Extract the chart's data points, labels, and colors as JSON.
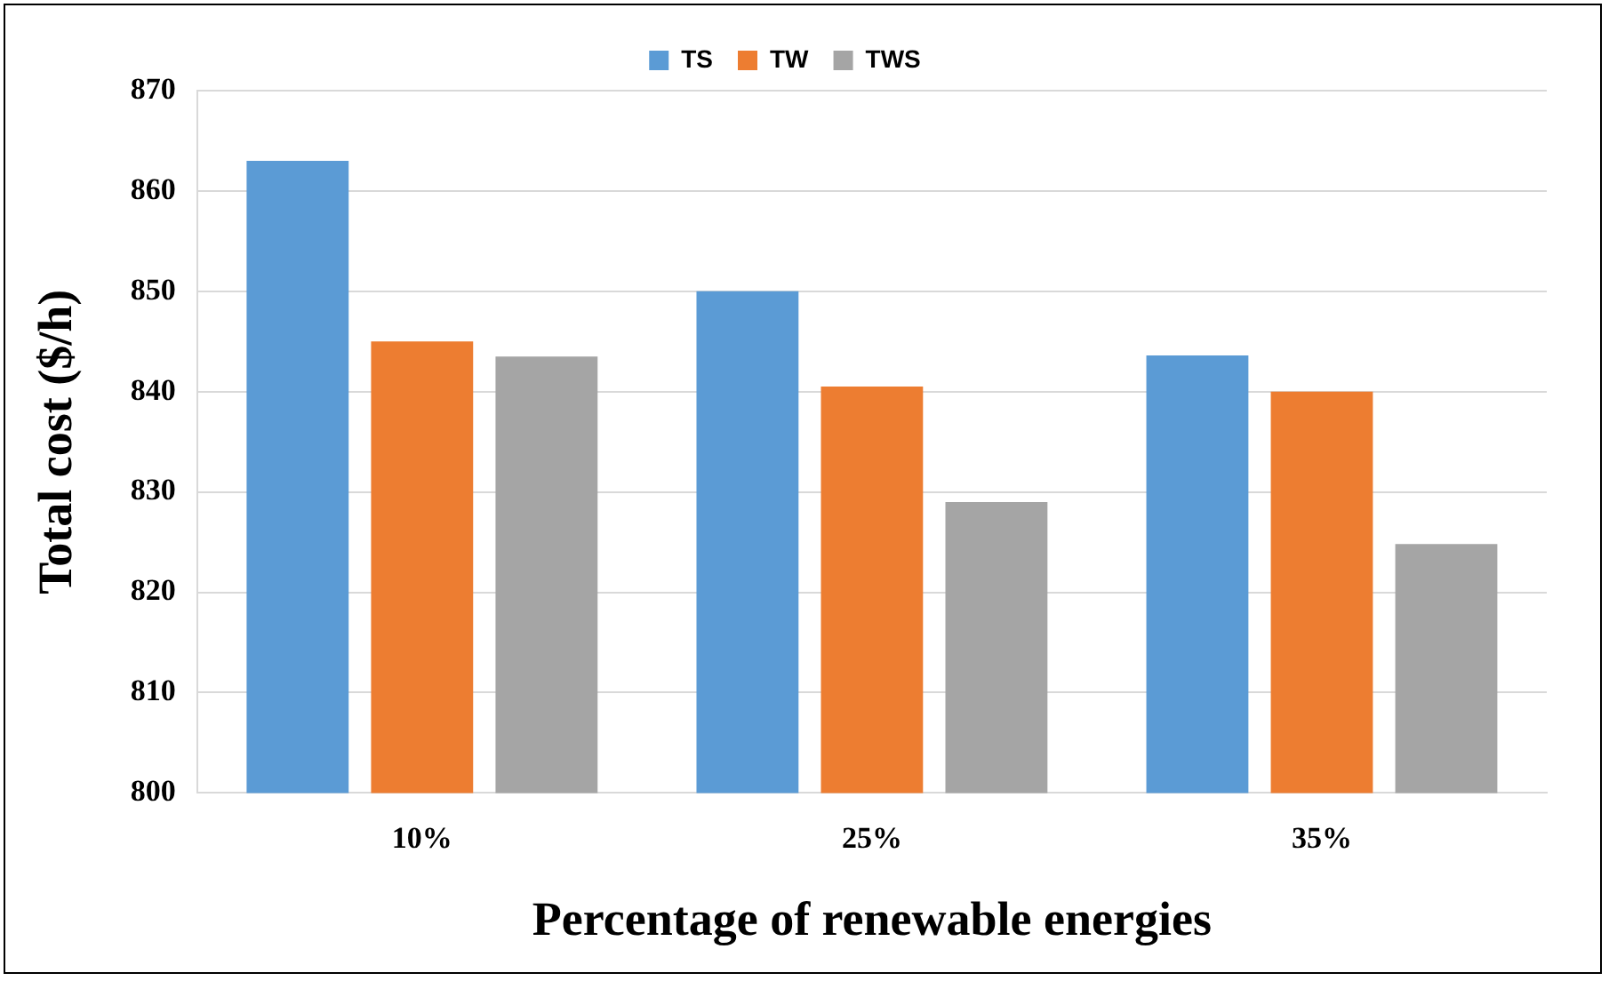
{
  "chart_data": {
    "type": "bar",
    "xlabel": "Percentage of renewable energies",
    "ylabel": "Total cost ($/h)",
    "categories": [
      "10%",
      "25%",
      "35%"
    ],
    "series": [
      {
        "name": "TS",
        "color": "#5b9bd5",
        "values": [
          863,
          850,
          843.6
        ]
      },
      {
        "name": "TW",
        "color": "#ed7d31",
        "values": [
          845,
          840.5,
          840
        ]
      },
      {
        "name": "TWS",
        "color": "#a5a5a5",
        "values": [
          843.5,
          829,
          824.8
        ]
      }
    ],
    "ylim": [
      800,
      870
    ],
    "yticks": [
      800,
      810,
      820,
      830,
      840,
      850,
      860,
      870
    ],
    "grid": "y",
    "legend": "top"
  }
}
